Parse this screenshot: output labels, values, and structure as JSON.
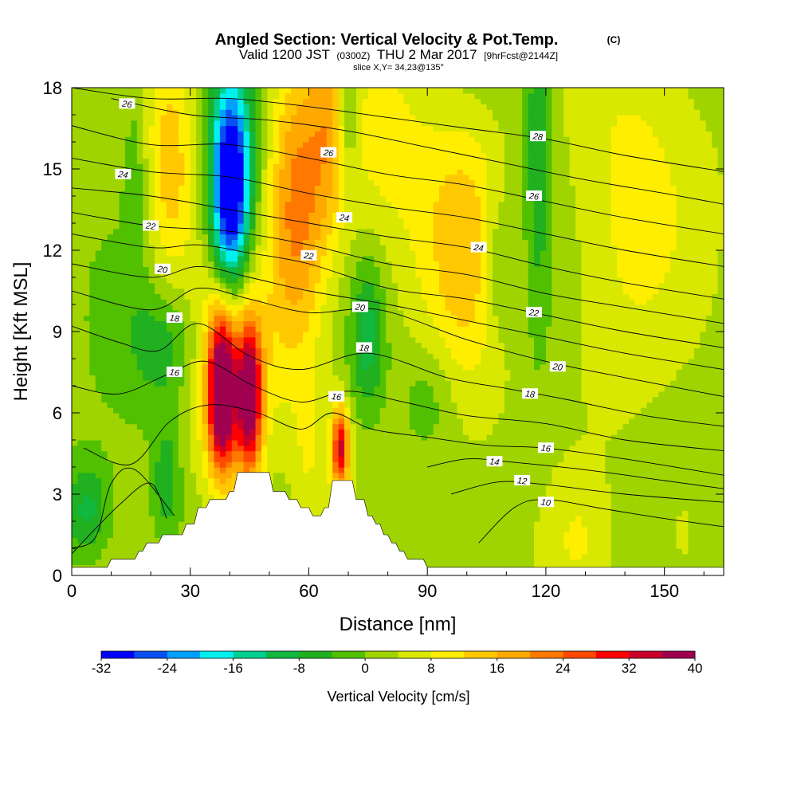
{
  "header": {
    "title": "Angled Section: Vertical Velocity & Pot.Temp.",
    "title_mark": "(C)",
    "valid_prefix": "Valid 1200 JST",
    "valid_utc": "(0300Z)",
    "valid_date": "THU 2 Mar 2017",
    "forecast": "[9hrFcst@2144Z]",
    "slice": "slice X,Y= 34,23@135°"
  },
  "chart_data": {
    "type": "heatmap",
    "xlabel": "Distance [nm]",
    "ylabel": "Height [Kft MSL]",
    "xlim": [
      0,
      165
    ],
    "ylim": [
      0,
      18
    ],
    "x_ticks": [
      0,
      30,
      60,
      90,
      120,
      150
    ],
    "y_ticks": [
      0,
      3,
      6,
      9,
      12,
      15,
      18
    ],
    "colorbar": {
      "label": "Vertical Velocity [cm/s]",
      "levels": [
        -32,
        -28,
        -24,
        -20,
        -16,
        -12,
        -8,
        -4,
        0,
        4,
        8,
        12,
        16,
        20,
        24,
        28,
        32,
        36,
        40
      ],
      "tick_labels": [
        "-32",
        "-24",
        "-16",
        "-8",
        "0",
        "8",
        "16",
        "24",
        "32",
        "40"
      ],
      "colors": [
        "#0000ff",
        "#0a50f0",
        "#00a0ff",
        "#00f0f0",
        "#00d090",
        "#10b840",
        "#20b020",
        "#50c000",
        "#a0d400",
        "#d8e800",
        "#ffee00",
        "#ffc800",
        "#ffa800",
        "#ff7800",
        "#ff4800",
        "#ff0000",
        "#c8002a",
        "#a00050"
      ]
    },
    "terrain": [
      [
        0,
        0.3
      ],
      [
        9,
        0.3
      ],
      [
        10,
        0.6
      ],
      [
        16,
        0.6
      ],
      [
        17,
        0.9
      ],
      [
        18,
        0.9
      ],
      [
        19,
        1.2
      ],
      [
        22,
        1.2
      ],
      [
        23,
        1.5
      ],
      [
        28,
        1.5
      ],
      [
        29,
        1.9
      ],
      [
        31,
        1.9
      ],
      [
        32,
        2.5
      ],
      [
        34,
        2.5
      ],
      [
        35,
        2.8
      ],
      [
        39,
        2.8
      ],
      [
        40,
        3.1
      ],
      [
        41,
        3.1
      ],
      [
        42,
        3.8
      ],
      [
        50,
        3.8
      ],
      [
        51,
        3.1
      ],
      [
        54,
        3.1
      ],
      [
        55,
        2.8
      ],
      [
        57,
        2.8
      ],
      [
        58,
        2.5
      ],
      [
        60,
        2.5
      ],
      [
        61,
        2.2
      ],
      [
        63,
        2.2
      ],
      [
        64,
        2.5
      ],
      [
        65,
        2.5
      ],
      [
        66,
        3.5
      ],
      [
        71,
        3.5
      ],
      [
        72,
        2.8
      ],
      [
        74,
        2.8
      ],
      [
        75,
        2.2
      ],
      [
        76,
        2.2
      ],
      [
        77,
        1.9
      ],
      [
        78,
        1.9
      ],
      [
        79,
        1.5
      ],
      [
        80,
        1.5
      ],
      [
        81,
        1.2
      ],
      [
        82,
        1.2
      ],
      [
        83,
        0.9
      ],
      [
        84,
        0.9
      ],
      [
        85,
        0.6
      ],
      [
        89,
        0.6
      ],
      [
        90,
        0.3
      ],
      [
        165,
        0.3
      ]
    ],
    "contours": [
      {
        "label": "10",
        "label_pos": [
          120,
          2.7
        ],
        "points": [
          [
            103,
            1.2
          ],
          [
            112,
            2.5
          ],
          [
            120,
            2.8
          ],
          [
            135,
            2.45
          ],
          [
            150,
            2.1
          ],
          [
            165,
            1.8
          ]
        ]
      },
      {
        "label": "12",
        "label_pos": [
          114,
          3.5
        ],
        "points": [
          [
            96,
            3.0
          ],
          [
            108,
            3.45
          ],
          [
            120,
            3.35
          ],
          [
            140,
            3.0
          ],
          [
            165,
            2.7
          ]
        ]
      },
      {
        "label": "14",
        "label_pos": [
          107,
          4.2
        ],
        "points": [
          [
            90,
            4.0
          ],
          [
            100,
            4.3
          ],
          [
            110,
            4.2
          ],
          [
            130,
            3.9
          ],
          [
            150,
            3.5
          ],
          [
            165,
            3.2
          ]
        ]
      },
      {
        "label": "16",
        "label_pos": [
          120,
          4.7
        ],
        "points": [
          [
            3,
            4.7
          ],
          [
            15,
            4.1
          ],
          [
            25,
            5.7
          ],
          [
            35,
            6.3
          ],
          [
            47,
            6.0
          ],
          [
            58,
            5.4
          ],
          [
            66,
            6.0
          ],
          [
            76,
            5.4
          ],
          [
            90,
            5.1
          ],
          [
            105,
            4.8
          ],
          [
            120,
            4.7
          ],
          [
            140,
            4.3
          ],
          [
            165,
            3.7
          ]
        ]
      },
      {
        "label": "18",
        "label_pos": [
          116,
          6.7
        ],
        "points": [
          [
            0,
            9.2
          ],
          [
            12,
            8.6
          ],
          [
            22,
            8.3
          ],
          [
            32,
            9.3
          ],
          [
            45,
            8.1
          ],
          [
            58,
            7.6
          ],
          [
            75,
            8.2
          ],
          [
            95,
            7.3
          ],
          [
            110,
            6.9
          ],
          [
            125,
            6.5
          ],
          [
            145,
            5.9
          ],
          [
            165,
            5.5
          ]
        ]
      },
      {
        "label": "20",
        "label_pos": [
          123,
          7.7
        ],
        "points": [
          [
            0,
            10.5
          ],
          [
            20,
            9.8
          ],
          [
            32,
            10.6
          ],
          [
            45,
            10.2
          ],
          [
            60,
            9.7
          ],
          [
            78,
            9.8
          ],
          [
            100,
            8.7
          ],
          [
            120,
            7.9
          ],
          [
            140,
            7.3
          ],
          [
            165,
            6.6
          ]
        ]
      },
      {
        "label": "22",
        "label_pos": [
          117,
          9.7
        ],
        "points": [
          [
            0,
            12.6
          ],
          [
            20,
            12.1
          ],
          [
            32,
            12.2
          ],
          [
            45,
            11.9
          ],
          [
            60,
            11.5
          ],
          [
            80,
            10.6
          ],
          [
            100,
            10.2
          ],
          [
            120,
            9.6
          ],
          [
            140,
            9.0
          ],
          [
            165,
            8.4
          ]
        ]
      },
      {
        "label": "24",
        "label_pos": [
          103,
          12.1
        ],
        "points": [
          [
            0,
            14.3
          ],
          [
            20,
            14.0
          ],
          [
            40,
            13.5
          ],
          [
            60,
            13.0
          ],
          [
            80,
            12.5
          ],
          [
            100,
            12.1
          ],
          [
            120,
            11.4
          ],
          [
            140,
            10.8
          ],
          [
            165,
            10.2
          ]
        ]
      },
      {
        "label": "26",
        "label_pos": [
          117,
          14.0
        ],
        "points": [
          [
            0,
            16.6
          ],
          [
            20,
            15.9
          ],
          [
            40,
            15.9
          ],
          [
            60,
            15.4
          ],
          [
            80,
            14.8
          ],
          [
            100,
            14.4
          ],
          [
            120,
            13.8
          ],
          [
            140,
            13.2
          ],
          [
            165,
            12.6
          ]
        ]
      },
      {
        "label": "28",
        "label_pos": [
          118,
          16.2
        ],
        "points": [
          [
            0,
            18.0
          ],
          [
            20,
            17.6
          ],
          [
            40,
            17.6
          ],
          [
            60,
            17.3
          ],
          [
            80,
            16.9
          ],
          [
            100,
            16.5
          ],
          [
            120,
            16.1
          ],
          [
            140,
            15.5
          ],
          [
            165,
            14.9
          ]
        ]
      },
      {
        "label": "",
        "label_pos": null,
        "points": [
          [
            10,
            17.6
          ],
          [
            30,
            17.0
          ],
          [
            50,
            16.8
          ],
          [
            70,
            16.4
          ],
          [
            90,
            15.8
          ],
          [
            110,
            15.2
          ],
          [
            130,
            14.6
          ],
          [
            150,
            14.1
          ],
          [
            165,
            13.7
          ]
        ]
      },
      {
        "label": "",
        "label_pos": null,
        "points": [
          [
            0,
            15.4
          ],
          [
            20,
            14.9
          ],
          [
            40,
            14.7
          ],
          [
            60,
            14.1
          ],
          [
            80,
            13.6
          ],
          [
            100,
            13.2
          ],
          [
            120,
            12.6
          ],
          [
            140,
            12.0
          ],
          [
            165,
            11.4
          ]
        ]
      },
      {
        "label": "",
        "label_pos": null,
        "points": [
          [
            0,
            13.4
          ],
          [
            20,
            12.9
          ],
          [
            40,
            12.7
          ],
          [
            60,
            12.2
          ],
          [
            80,
            11.5
          ],
          [
            100,
            11.1
          ],
          [
            120,
            10.4
          ],
          [
            140,
            9.9
          ],
          [
            165,
            9.3
          ]
        ]
      },
      {
        "label": "",
        "label_pos": null,
        "points": [
          [
            0,
            11.5
          ],
          [
            20,
            11.0
          ],
          [
            32,
            11.4
          ],
          [
            45,
            11.0
          ],
          [
            60,
            10.5
          ],
          [
            80,
            10.0
          ],
          [
            100,
            9.4
          ],
          [
            120,
            8.8
          ],
          [
            140,
            8.2
          ],
          [
            165,
            7.6
          ]
        ]
      },
      {
        "label": "",
        "label_pos": null,
        "points": [
          [
            0,
            7.0
          ],
          [
            12,
            6.7
          ],
          [
            24,
            7.4
          ],
          [
            34,
            7.9
          ],
          [
            46,
            7.0
          ],
          [
            58,
            6.4
          ],
          [
            70,
            6.8
          ],
          [
            84,
            6.4
          ],
          [
            100,
            5.9
          ],
          [
            120,
            5.6
          ],
          [
            140,
            5.0
          ],
          [
            165,
            4.6
          ]
        ]
      },
      {
        "label": "",
        "label_pos": null,
        "points": [
          [
            0,
            1.0
          ],
          [
            6,
            1.4
          ],
          [
            10,
            3.4
          ],
          [
            16,
            3.9
          ],
          [
            26,
            2.2
          ]
        ]
      },
      {
        "label": "",
        "label_pos": null,
        "points": [
          [
            0,
            0.8
          ],
          [
            12,
            2.6
          ],
          [
            20,
            3.4
          ],
          [
            24,
            2.1
          ]
        ]
      }
    ],
    "contour_labels_only": [
      {
        "label": "26",
        "pos": [
          14,
          17.4
        ]
      },
      {
        "label": "24",
        "pos": [
          13,
          14.8
        ]
      },
      {
        "label": "22",
        "pos": [
          20,
          12.9
        ]
      },
      {
        "label": "20",
        "pos": [
          23,
          11.3
        ]
      },
      {
        "label": "18",
        "pos": [
          26,
          9.5
        ]
      },
      {
        "label": "16",
        "pos": [
          26,
          7.5
        ]
      },
      {
        "label": "26",
        "pos": [
          65,
          15.6
        ]
      },
      {
        "label": "24",
        "pos": [
          69,
          13.2
        ]
      },
      {
        "label": "22",
        "pos": [
          60,
          11.8
        ]
      },
      {
        "label": "20",
        "pos": [
          73,
          9.9
        ]
      },
      {
        "label": "18",
        "pos": [
          74,
          8.4
        ]
      },
      {
        "label": "16",
        "pos": [
          67,
          6.6
        ]
      }
    ],
    "features": [
      {
        "kind": "updraft",
        "x": 38,
        "y": 6.8,
        "sx": 2.4,
        "sy": 2.0,
        "value": 40
      },
      {
        "kind": "updraft",
        "x": 45,
        "y": 6.6,
        "sx": 2.2,
        "sy": 2.0,
        "value": 34
      },
      {
        "kind": "updraft",
        "x": 68,
        "y": 4.7,
        "sx": 1.6,
        "sy": 1.1,
        "value": 30
      },
      {
        "kind": "updraft_wide",
        "x": 40,
        "y": 7.5,
        "sx": 7,
        "sy": 3.5,
        "value": 14
      },
      {
        "kind": "downdraft",
        "x": 40,
        "y": 14.2,
        "sx": 3.2,
        "sy": 2.4,
        "value": -30
      },
      {
        "kind": "downdraft_col",
        "x": 41,
        "y": 14.5,
        "sx": 4.5,
        "sy": 4.0,
        "value": -16
      },
      {
        "kind": "updraft",
        "x": 57,
        "y": 13.5,
        "sx": 5,
        "sy": 4,
        "value": 18
      },
      {
        "kind": "updraft",
        "x": 25,
        "y": 15.0,
        "sx": 4,
        "sy": 3,
        "value": 12
      },
      {
        "kind": "updraft",
        "x": 65,
        "y": 16.5,
        "sx": 3.5,
        "sy": 3,
        "value": 10
      },
      {
        "kind": "updraft",
        "x": 80,
        "y": 16.0,
        "sx": 10,
        "sy": 3,
        "value": 7
      },
      {
        "kind": "updraft",
        "x": 100,
        "y": 12.5,
        "sx": 8,
        "sy": 3.5,
        "value": 12
      },
      {
        "kind": "updraft",
        "x": 143,
        "y": 14.5,
        "sx": 12,
        "sy": 4,
        "value": 8
      },
      {
        "kind": "updraft",
        "x": 135,
        "y": 8.5,
        "sx": 10,
        "sy": 3,
        "value": 4
      },
      {
        "kind": "downdraft",
        "x": 75,
        "y": 8.8,
        "sx": 3,
        "sy": 2,
        "value": -12
      },
      {
        "kind": "downdraft",
        "x": 70,
        "y": 17.0,
        "sx": 2,
        "sy": 1.6,
        "value": -10
      },
      {
        "kind": "downdraft",
        "x": 118,
        "y": 15.5,
        "sx": 2.5,
        "sy": 5,
        "value": -9
      },
      {
        "kind": "downdraft",
        "x": 108,
        "y": 11.5,
        "sx": 3,
        "sy": 2,
        "value": -8
      },
      {
        "kind": "downdraft",
        "x": 16,
        "y": 15.0,
        "sx": 2,
        "sy": 3,
        "value": -5
      },
      {
        "kind": "downdraft",
        "x": 4,
        "y": 2.4,
        "sx": 4,
        "sy": 1.2,
        "value": -11
      },
      {
        "kind": "downdraft",
        "x": 24,
        "y": 3.5,
        "sx": 2.5,
        "sy": 1.5,
        "value": -9
      },
      {
        "kind": "downdraft",
        "x": 24,
        "y": 8.5,
        "sx": 6,
        "sy": 1.5,
        "value": -8
      },
      {
        "kind": "downdraft",
        "x": 90,
        "y": 6.5,
        "sx": 5,
        "sy": 1.5,
        "value": -6
      },
      {
        "kind": "updraft",
        "x": 60,
        "y": 4.5,
        "sx": 3,
        "sy": 2,
        "value": 5
      },
      {
        "kind": "updraft",
        "x": 128,
        "y": 1.5,
        "sx": 5,
        "sy": 1.5,
        "value": 4
      },
      {
        "kind": "updraft",
        "x": 155,
        "y": 1.5,
        "sx": 4,
        "sy": 1.5,
        "value": 5
      }
    ]
  }
}
